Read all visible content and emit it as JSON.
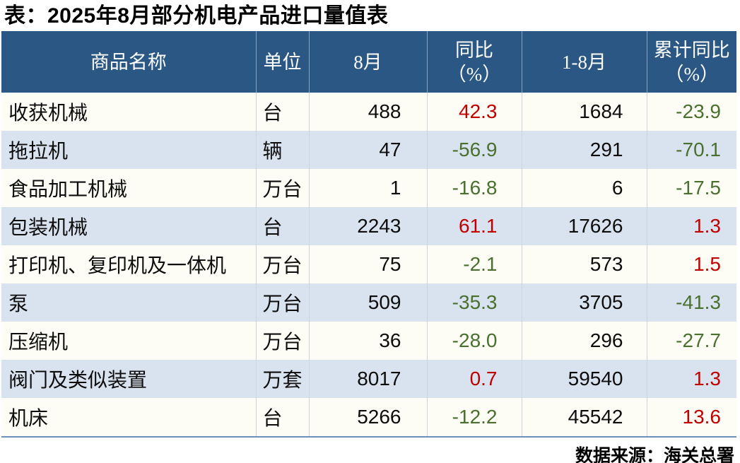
{
  "title": "表：2025年8月部分机电产品进口量值表",
  "source": "数据来源：海关总署",
  "colors": {
    "header_bg": "#2A5783",
    "stripe_row": "#D9E2EF",
    "plain_row": "#FDFDF6",
    "positive_value": "#C00000",
    "negative_value": "#4A7030",
    "bottom_rule": "#6E8FBC"
  },
  "table": {
    "header": {
      "name": "商品名称",
      "unit": "单位",
      "aug": "8月",
      "yoy_line1": "同比",
      "yoy_line2": "（%）",
      "jan_aug": "1-8月",
      "cum_line1": "累计同比",
      "cum_line2": "（%）"
    },
    "rows": [
      {
        "name": "收获机械",
        "unit": "台",
        "aug": "488",
        "yoy": "42.3",
        "yoy_trend": "up",
        "jan_aug": "1684",
        "cum_yoy": "-23.9",
        "cum_trend": "down"
      },
      {
        "name": "拖拉机",
        "unit": "辆",
        "aug": "47",
        "yoy": "-56.9",
        "yoy_trend": "down",
        "jan_aug": "291",
        "cum_yoy": "-70.1",
        "cum_trend": "down"
      },
      {
        "name": "食品加工机械",
        "unit": "万台",
        "aug": "1",
        "yoy": "-16.8",
        "yoy_trend": "down",
        "jan_aug": "6",
        "cum_yoy": "-17.5",
        "cum_trend": "down"
      },
      {
        "name": "包装机械",
        "unit": "台",
        "aug": "2243",
        "yoy": "61.1",
        "yoy_trend": "up",
        "jan_aug": "17626",
        "cum_yoy": "1.3",
        "cum_trend": "up"
      },
      {
        "name": "打印机、复印机及一体机",
        "unit": "万台",
        "aug": "75",
        "yoy": "-2.1",
        "yoy_trend": "down",
        "jan_aug": "573",
        "cum_yoy": "1.5",
        "cum_trend": "up"
      },
      {
        "name": "泵",
        "unit": "万台",
        "aug": "509",
        "yoy": "-35.3",
        "yoy_trend": "down",
        "jan_aug": "3705",
        "cum_yoy": "-41.3",
        "cum_trend": "down"
      },
      {
        "name": "压缩机",
        "unit": "万台",
        "aug": "36",
        "yoy": "-28.0",
        "yoy_trend": "down",
        "jan_aug": "296",
        "cum_yoy": "-27.7",
        "cum_trend": "down"
      },
      {
        "name": "阀门及类似装置",
        "unit": "万套",
        "aug": "8017",
        "yoy": "0.7",
        "yoy_trend": "up",
        "jan_aug": "59540",
        "cum_yoy": "1.3",
        "cum_trend": "up"
      },
      {
        "name": "机床",
        "unit": "台",
        "aug": "5266",
        "yoy": "-12.2",
        "yoy_trend": "down",
        "jan_aug": "45542",
        "cum_yoy": "13.6",
        "cum_trend": "up"
      }
    ]
  },
  "chart_data": {
    "type": "table",
    "title": "表：2025年8月部分机电产品进口量值表",
    "columns": [
      "商品名称",
      "单位",
      "8月",
      "同比（%）",
      "1-8月",
      "累计同比（%）"
    ],
    "rows": [
      [
        "收获机械",
        "台",
        488,
        42.3,
        1684,
        -23.9
      ],
      [
        "拖拉机",
        "辆",
        47,
        -56.9,
        291,
        -70.1
      ],
      [
        "食品加工机械",
        "万台",
        1,
        -16.8,
        6,
        -17.5
      ],
      [
        "包装机械",
        "台",
        2243,
        61.1,
        17626,
        1.3
      ],
      [
        "打印机、复印机及一体机",
        "万台",
        75,
        -2.1,
        573,
        1.5
      ],
      [
        "泵",
        "万台",
        509,
        -35.3,
        3705,
        -41.3
      ],
      [
        "压缩机",
        "万台",
        36,
        -28.0,
        296,
        -27.7
      ],
      [
        "阀门及类似装置",
        "万套",
        8017,
        0.7,
        59540,
        1.3
      ],
      [
        "机床",
        "台",
        5266,
        -12.2,
        45542,
        13.6
      ]
    ],
    "notes": "正值为红色，负值为深绿色；数据来源：海关总署"
  }
}
